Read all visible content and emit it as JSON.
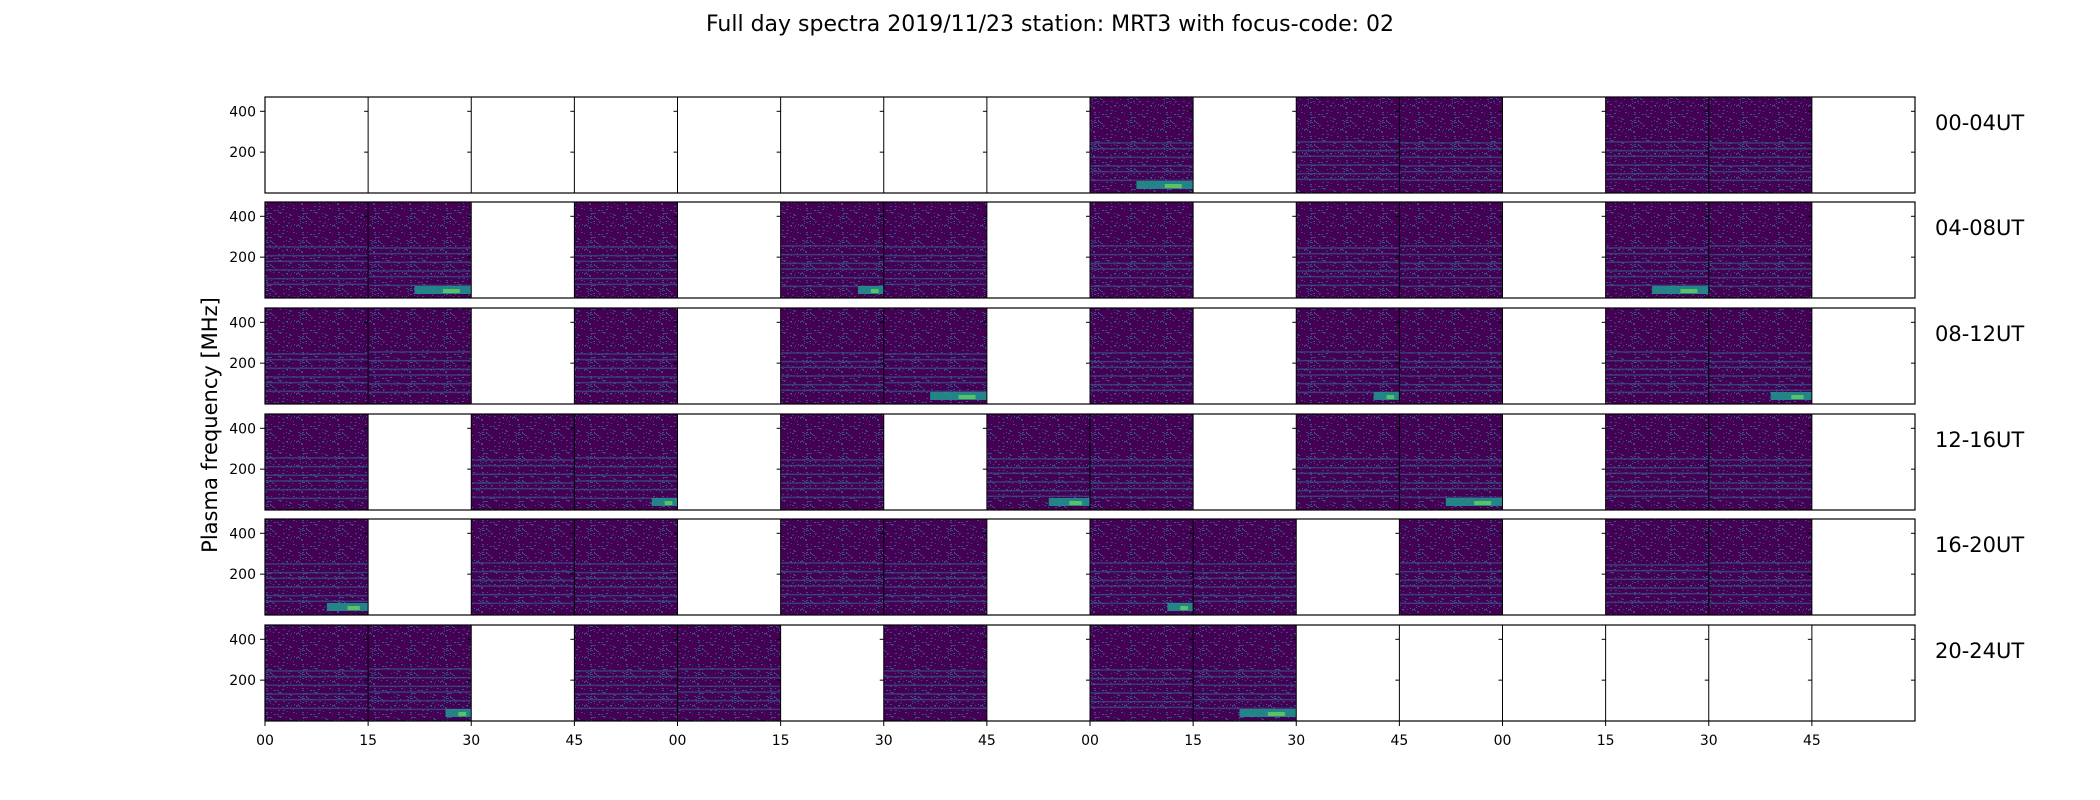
{
  "chart_data": {
    "type": "heatmap",
    "title": "Full day spectra 2019/11/23 station: MRT3 with focus-code: 02",
    "ylabel": "Plasma frequency [MHz]",
    "yticks": [
      "200",
      "400"
    ],
    "ylim": [
      0,
      470
    ],
    "xticks": [
      "00",
      "15",
      "30",
      "45",
      "00",
      "15",
      "30",
      "45",
      "00",
      "15",
      "30",
      "45",
      "00",
      "15",
      "30",
      "45"
    ],
    "colormap": [
      "#440154",
      "#3b528b",
      "#21918c",
      "#5ec962",
      "#fde725"
    ],
    "rows": [
      {
        "label": "00-04UT",
        "panels": [
          0,
          0,
          0,
          0,
          0,
          0,
          0,
          0,
          1,
          0,
          1,
          1,
          0,
          1,
          1,
          0
        ]
      },
      {
        "label": "04-08UT",
        "panels": [
          1,
          1,
          0,
          1,
          0,
          1,
          1,
          0,
          1,
          0,
          1,
          1,
          0,
          1,
          1,
          0
        ]
      },
      {
        "label": "08-12UT",
        "panels": [
          1,
          1,
          0,
          1,
          0,
          1,
          1,
          0,
          1,
          0,
          1,
          1,
          0,
          1,
          1,
          0
        ]
      },
      {
        "label": "12-16UT",
        "panels": [
          1,
          0,
          1,
          1,
          0,
          1,
          0,
          1,
          1,
          0,
          1,
          1,
          0,
          1,
          1,
          0
        ]
      },
      {
        "label": "16-20UT",
        "panels": [
          1,
          0,
          1,
          1,
          0,
          1,
          1,
          0,
          1,
          1,
          0,
          1,
          0,
          1,
          1,
          0
        ]
      },
      {
        "label": "20-24UT",
        "panels": [
          1,
          1,
          0,
          1,
          1,
          0,
          1,
          0,
          1,
          1,
          0,
          0,
          0,
          0,
          0,
          0
        ]
      }
    ]
  }
}
